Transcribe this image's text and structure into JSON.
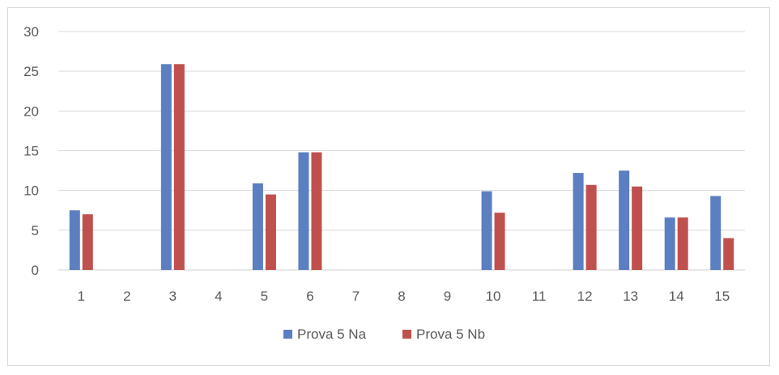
{
  "chart_data": {
    "type": "bar",
    "categories": [
      "1",
      "2",
      "3",
      "4",
      "5",
      "6",
      "7",
      "8",
      "9",
      "10",
      "11",
      "12",
      "13",
      "14",
      "15"
    ],
    "series": [
      {
        "name": "Prova 5 Na",
        "color": "#5b7fc0",
        "values": [
          7.5,
          null,
          25.9,
          null,
          10.9,
          14.8,
          null,
          null,
          null,
          9.9,
          null,
          12.2,
          12.5,
          6.6,
          9.3
        ]
      },
      {
        "name": "Prova 5 Nb",
        "color": "#c0504d",
        "values": [
          7.0,
          null,
          25.9,
          null,
          9.5,
          14.8,
          null,
          null,
          null,
          7.2,
          null,
          10.7,
          10.5,
          6.6,
          4.0
        ]
      }
    ],
    "y_ticks": [
      "0",
      "5",
      "10",
      "15",
      "20",
      "25",
      "30"
    ],
    "ylim": [
      0,
      30
    ],
    "grid": true,
    "legend_position": "bottom"
  }
}
